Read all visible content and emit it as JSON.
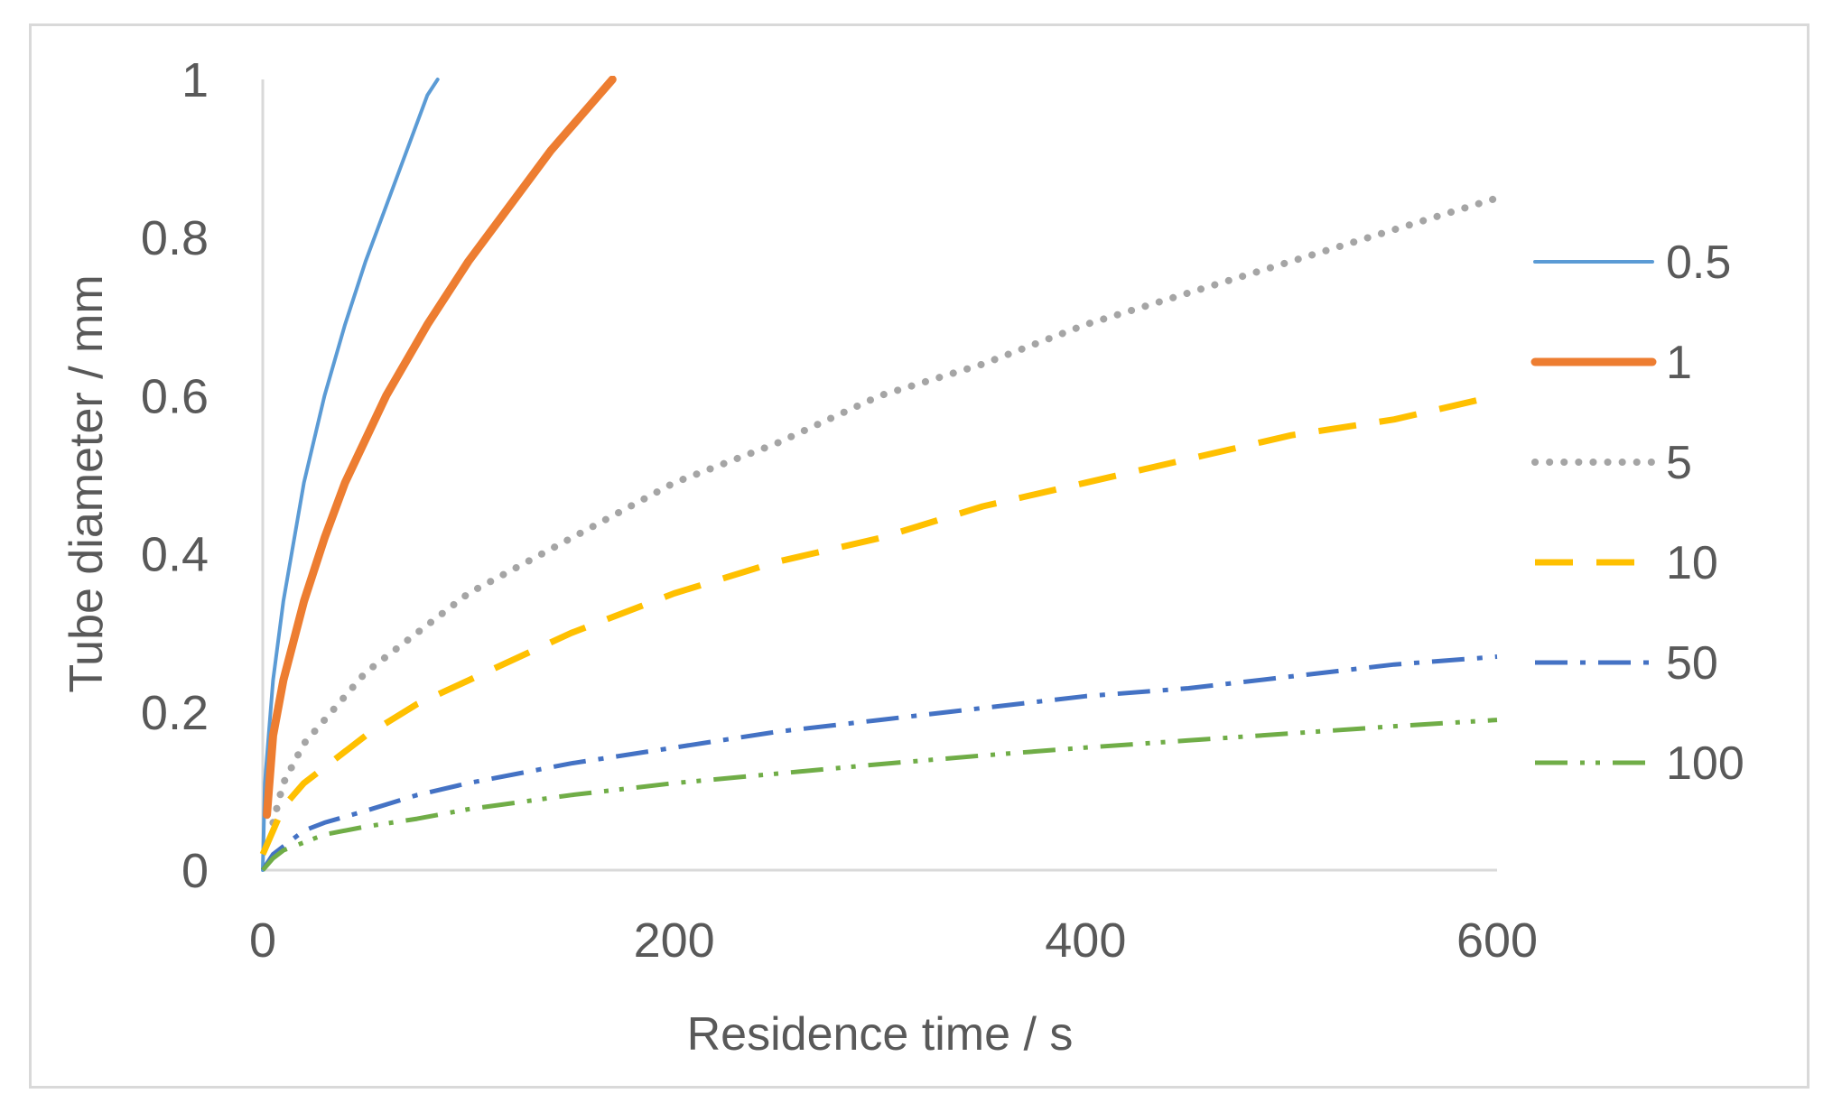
{
  "chart_data": {
    "type": "line",
    "title": "",
    "xlabel": "Residence time / s",
    "ylabel": "Tube diameter / mm",
    "xlim": [
      0,
      600
    ],
    "ylim": [
      0,
      1
    ],
    "x_ticks": [
      "0",
      "200",
      "400",
      "600"
    ],
    "y_ticks": [
      "0",
      "0.2",
      "0.4",
      "0.6",
      "0.8",
      "1"
    ],
    "grid": false,
    "legend_position": "right",
    "series": [
      {
        "name": "0.5",
        "color": "#5b9bd5",
        "style": "solid-thin",
        "x": [
          0,
          1,
          5,
          10,
          20,
          30,
          40,
          50,
          60,
          70,
          80,
          85
        ],
        "y": [
          0,
          0.11,
          0.24,
          0.34,
          0.49,
          0.6,
          0.69,
          0.77,
          0.84,
          0.91,
          0.98,
          1.0
        ]
      },
      {
        "name": "1",
        "color": "#ed7d31",
        "style": "solid-thick",
        "x": [
          2,
          5,
          10,
          20,
          30,
          40,
          60,
          80,
          100,
          120,
          140,
          160,
          170
        ],
        "y": [
          0.07,
          0.17,
          0.24,
          0.34,
          0.42,
          0.49,
          0.6,
          0.69,
          0.77,
          0.84,
          0.91,
          0.97,
          1.0
        ]
      },
      {
        "name": "5",
        "color": "#a5a5a5",
        "style": "dotted",
        "x": [
          5,
          10,
          20,
          30,
          50,
          75,
          100,
          150,
          200,
          250,
          300,
          350,
          400,
          450,
          500,
          550,
          600
        ],
        "y": [
          0.06,
          0.11,
          0.16,
          0.19,
          0.25,
          0.3,
          0.35,
          0.42,
          0.49,
          0.54,
          0.6,
          0.64,
          0.69,
          0.73,
          0.77,
          0.81,
          0.85
        ]
      },
      {
        "name": "10",
        "color": "#ffc000",
        "style": "dashed",
        "x": [
          0,
          5,
          10,
          20,
          30,
          50,
          75,
          100,
          150,
          200,
          250,
          300,
          350,
          400,
          450,
          500,
          550,
          600
        ],
        "y": [
          0.02,
          0.05,
          0.08,
          0.11,
          0.13,
          0.17,
          0.21,
          0.24,
          0.3,
          0.35,
          0.39,
          0.42,
          0.46,
          0.49,
          0.52,
          0.55,
          0.57,
          0.6
        ]
      },
      {
        "name": "50",
        "color": "#4472c4",
        "style": "dash-dot",
        "x": [
          0,
          5,
          10,
          20,
          30,
          50,
          75,
          100,
          150,
          200,
          250,
          300,
          350,
          400,
          450,
          500,
          550,
          600
        ],
        "y": [
          0.0,
          0.02,
          0.03,
          0.05,
          0.06,
          0.075,
          0.095,
          0.11,
          0.135,
          0.155,
          0.175,
          0.19,
          0.205,
          0.22,
          0.23,
          0.245,
          0.26,
          0.27
        ]
      },
      {
        "name": "100",
        "color": "#70ad47",
        "style": "dash-dot-dot",
        "x": [
          0,
          5,
          10,
          20,
          30,
          50,
          75,
          100,
          150,
          200,
          250,
          300,
          350,
          400,
          450,
          500,
          550,
          600
        ],
        "y": [
          0.0,
          0.015,
          0.025,
          0.035,
          0.045,
          0.055,
          0.065,
          0.077,
          0.095,
          0.11,
          0.122,
          0.134,
          0.145,
          0.155,
          0.164,
          0.173,
          0.182,
          0.19
        ]
      }
    ]
  }
}
